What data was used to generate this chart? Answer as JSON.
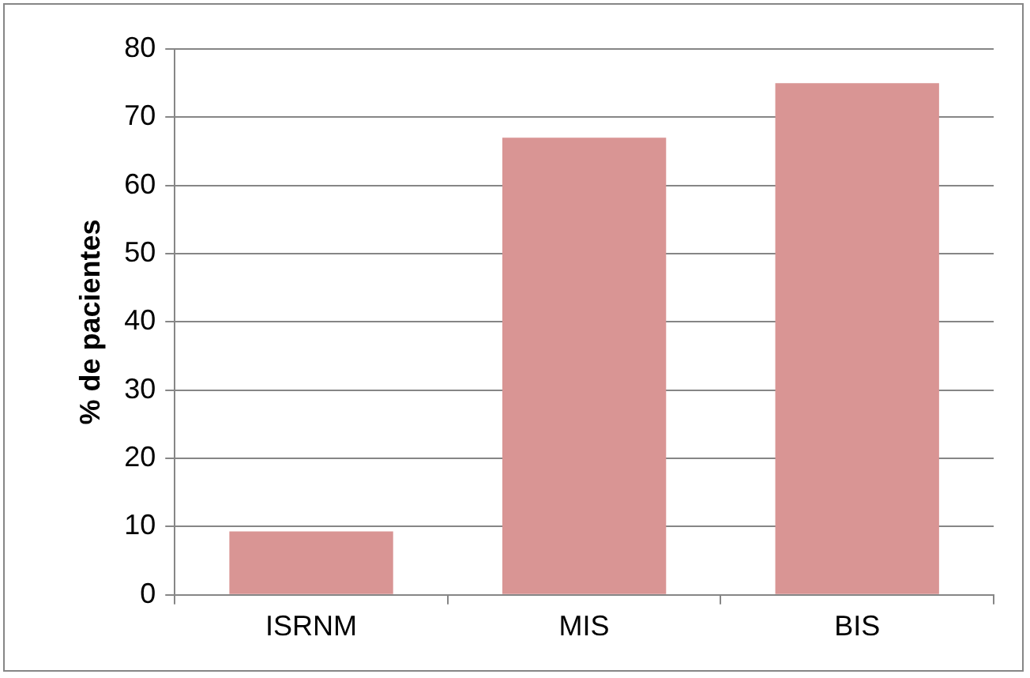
{
  "chart_data": {
    "type": "bar",
    "ylabel": "% de pacientes",
    "categories": [
      "ISRNM",
      "MIS",
      "BIS"
    ],
    "values": [
      9.3,
      67,
      75
    ],
    "color": "#d99594",
    "ylim": [
      0,
      80
    ],
    "yticks": [
      0,
      10,
      20,
      30,
      40,
      50,
      60,
      70,
      80
    ],
    "grid": "y"
  }
}
